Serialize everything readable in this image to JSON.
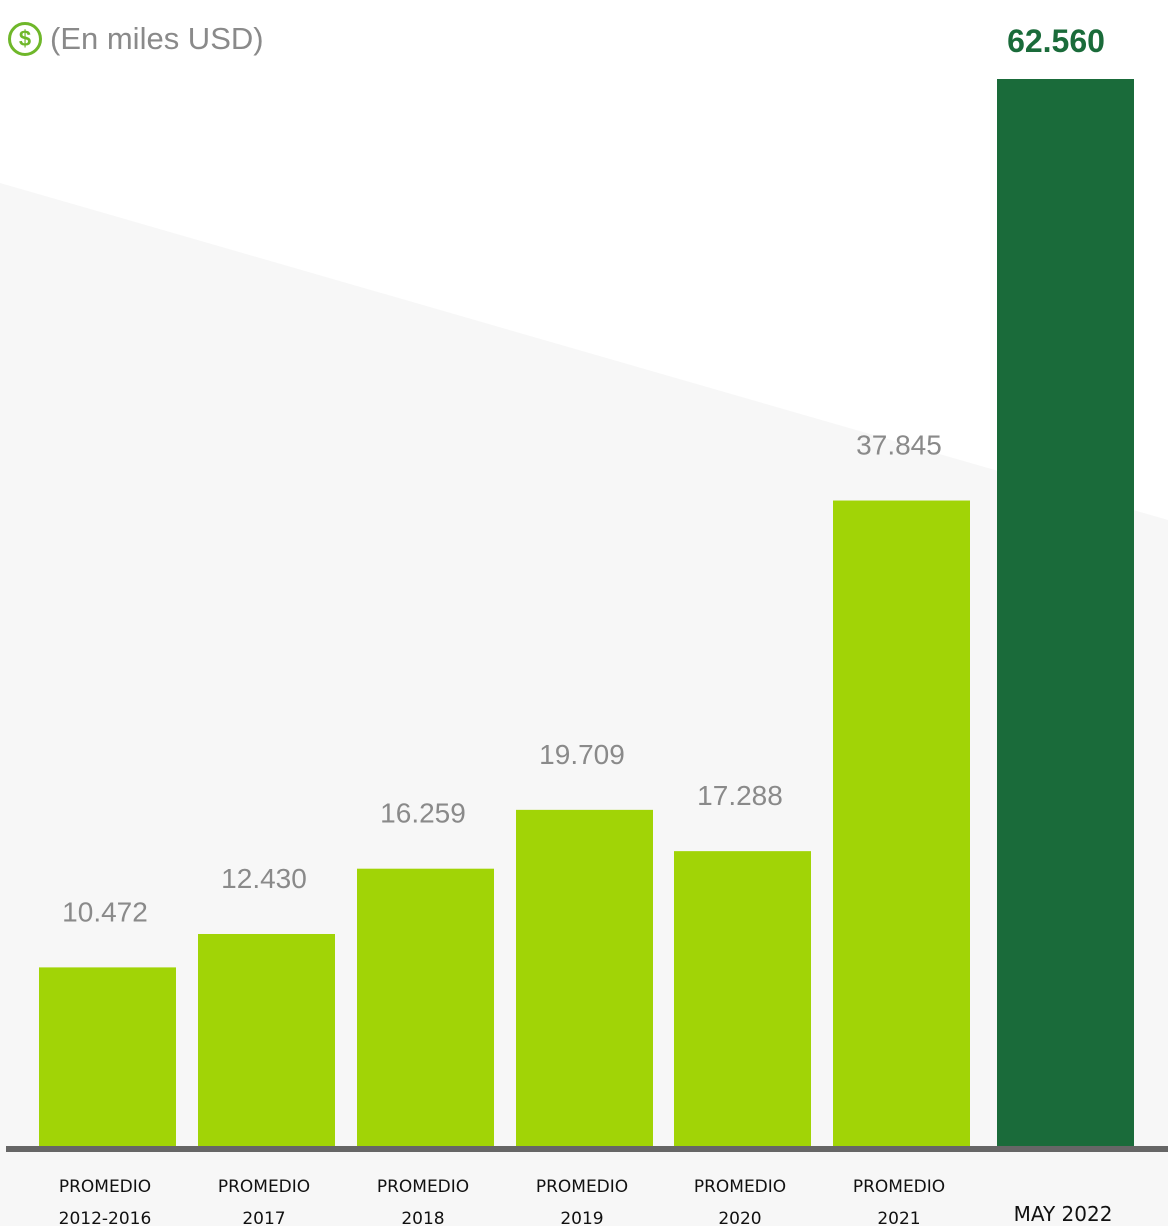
{
  "header": {
    "unit_label": "(En miles USD)",
    "icon": "dollar-circle-icon",
    "icon_glyph": "$"
  },
  "colors": {
    "bar_regular": "#a1d406",
    "bar_highlight": "#1a6b3a",
    "value_label": "#8a8a8a",
    "highlight_label": "#1a6b3a",
    "icon": "#6fb72a",
    "baseline": "#666666"
  },
  "chart_data": {
    "type": "bar",
    "categories": [
      [
        "PROMEDIO",
        "2012-2016"
      ],
      [
        "PROMEDIO",
        "2017"
      ],
      [
        "PROMEDIO",
        "2018"
      ],
      [
        "PROMEDIO",
        "2019"
      ],
      [
        "PROMEDIO",
        "2020"
      ],
      [
        "PROMEDIO",
        "2021"
      ],
      [
        "MAY 2022"
      ]
    ],
    "values": [
      10472,
      12430,
      16259,
      19709,
      17288,
      37845,
      62560
    ],
    "value_labels": [
      "10.472",
      "12.430",
      "16.259",
      "19.709",
      "17.288",
      "37.845",
      "62.560"
    ],
    "highlight_index": 6,
    "ylim": [
      0,
      62560
    ],
    "grid": false,
    "legend": "none"
  }
}
